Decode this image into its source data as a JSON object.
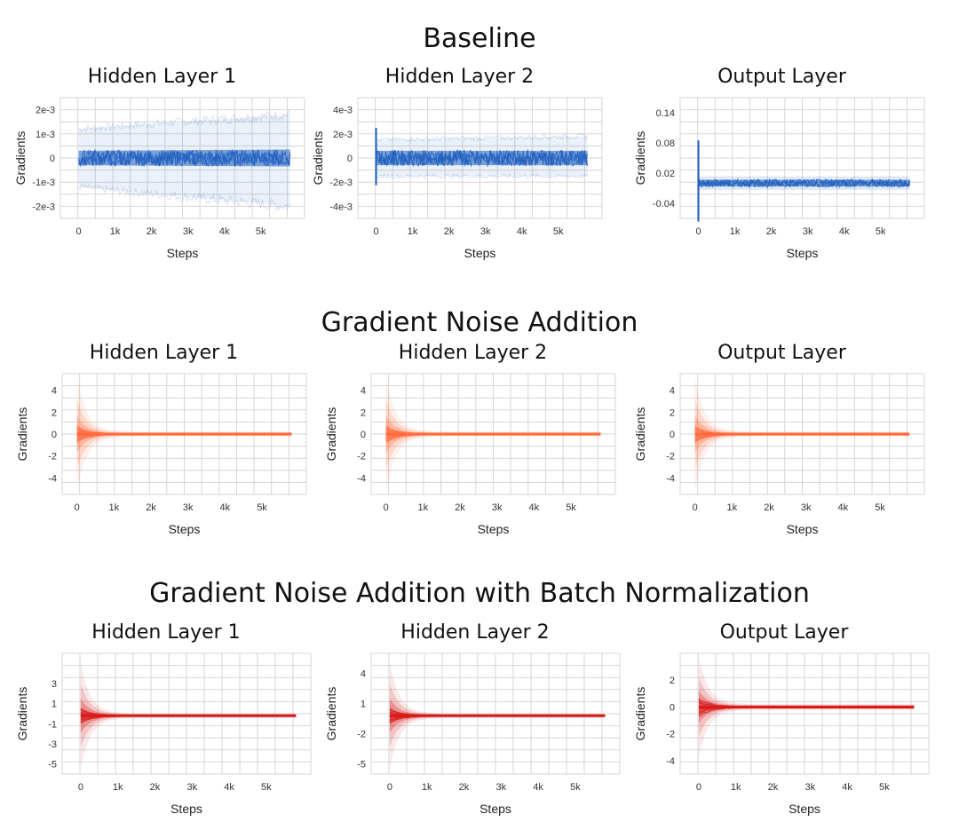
{
  "sections": [
    {
      "title": "Baseline",
      "panels": [
        {
          "title": "Hidden Layer 1",
          "chart_index": 0
        },
        {
          "title": "Hidden Layer 2",
          "chart_index": 1
        },
        {
          "title": "Output Layer",
          "chart_index": 2
        }
      ]
    },
    {
      "title": "Gradient Noise Addition",
      "panels": [
        {
          "title": "Hidden Layer 1",
          "chart_index": 3
        },
        {
          "title": "Hidden Layer 2",
          "chart_index": 4
        },
        {
          "title": "Output Layer",
          "chart_index": 5
        }
      ]
    },
    {
      "title": "Gradient Noise Addition with Batch Normalization",
      "panels": [
        {
          "title": "Hidden Layer 1",
          "chart_index": 6
        },
        {
          "title": "Hidden Layer 2",
          "chart_index": 7
        },
        {
          "title": "Output Layer",
          "chart_index": 8
        }
      ]
    }
  ],
  "colors": {
    "baseline": "#1f5fbf",
    "noise": "#ff6a3d",
    "noise_bn": "#d81a1a",
    "grid": "#d6d6d6"
  },
  "chart_data": [
    {
      "type": "area",
      "title": "Hidden Layer 1",
      "xlabel": "Steps",
      "ylabel": "Gradients",
      "x_ticks": [
        "0",
        "1k",
        "2k",
        "3k",
        "4k",
        "5k"
      ],
      "x_tick_values": [
        0,
        1000,
        2000,
        3000,
        4000,
        5000
      ],
      "y_ticks": [
        "2e-3",
        "1e-3",
        "0",
        "-1e-3",
        "-2e-3"
      ],
      "y_tick_values": [
        0.002,
        0.001,
        0,
        -0.001,
        -0.002
      ],
      "xlim": [
        -500,
        6200
      ],
      "ylim": [
        -0.0025,
        0.0025
      ],
      "series": {
        "x": [
          0,
          5800
        ],
        "outer_band": [
          -0.0012,
          0.0012,
          -0.002,
          0.0018
        ],
        "inner_band": [
          -0.0003,
          0.0003,
          -0.00035,
          0.00035
        ],
        "center": 0,
        "spike": 0
      }
    },
    {
      "type": "area",
      "title": "Hidden Layer 2",
      "xlabel": "Steps",
      "ylabel": "Gradients",
      "x_ticks": [
        "0",
        "1k",
        "2k",
        "3k",
        "4k",
        "5k"
      ],
      "x_tick_values": [
        0,
        1000,
        2000,
        3000,
        4000,
        5000
      ],
      "y_ticks": [
        "4e-3",
        "2e-3",
        "0",
        "-2e-3",
        "-4e-3"
      ],
      "y_tick_values": [
        0.004,
        0.002,
        0,
        -0.002,
        -0.004
      ],
      "xlim": [
        -500,
        6200
      ],
      "ylim": [
        -0.005,
        0.005
      ],
      "series": {
        "x": [
          0,
          5800
        ],
        "outer_band": [
          -0.0015,
          0.0015,
          -0.0015,
          0.0018
        ],
        "inner_band": [
          -0.0006,
          0.0006,
          -0.0006,
          0.0006
        ],
        "center": 0,
        "spike": 0.0025
      }
    },
    {
      "type": "area",
      "title": "Output Layer",
      "xlabel": "Steps",
      "ylabel": "Gradients",
      "x_ticks": [
        "0",
        "1k",
        "2k",
        "3k",
        "4k",
        "5k"
      ],
      "x_tick_values": [
        0,
        1000,
        2000,
        3000,
        4000,
        5000
      ],
      "y_ticks": [
        "0.14",
        "0.08",
        "0.02",
        "-0.04"
      ],
      "y_tick_values": [
        0.14,
        0.08,
        0.02,
        -0.04
      ],
      "xlim": [
        -500,
        6200
      ],
      "ylim": [
        -0.07,
        0.17
      ],
      "series": {
        "x": [
          0,
          5800
        ],
        "outer_band": [
          -0.012,
          0.012,
          -0.012,
          0.012
        ],
        "inner_band": [
          -0.007,
          0.007,
          -0.007,
          0.007
        ],
        "center": 0,
        "spike": 0.085
      }
    },
    {
      "type": "area",
      "title": "Hidden Layer 1",
      "xlabel": "Steps",
      "ylabel": "Gradients",
      "x_ticks": [
        "0",
        "1k",
        "2k",
        "3k",
        "4k",
        "5k"
      ],
      "x_tick_values": [
        0,
        1000,
        2000,
        3000,
        4000,
        5000
      ],
      "y_ticks": [
        "4",
        "2",
        "0",
        "-2",
        "-4"
      ],
      "y_tick_values": [
        4,
        2,
        0,
        -2,
        -4
      ],
      "xlim": [
        -400,
        6200
      ],
      "ylim": [
        -5.5,
        5.5
      ],
      "series": {
        "decay": true,
        "peak": 5,
        "inner_peak": 1.5,
        "center": 0
      }
    },
    {
      "type": "area",
      "title": "Hidden Layer 2",
      "xlabel": "Steps",
      "ylabel": "Gradients",
      "x_ticks": [
        "0",
        "1k",
        "2k",
        "3k",
        "4k",
        "5k"
      ],
      "x_tick_values": [
        0,
        1000,
        2000,
        3000,
        4000,
        5000
      ],
      "y_ticks": [
        "4",
        "2",
        "0",
        "-2",
        "-4"
      ],
      "y_tick_values": [
        4,
        2,
        0,
        -2,
        -4
      ],
      "xlim": [
        -400,
        6200
      ],
      "ylim": [
        -5.5,
        5.5
      ],
      "series": {
        "decay": true,
        "peak": 5,
        "inner_peak": 1.5,
        "center": 0
      }
    },
    {
      "type": "area",
      "title": "Output Layer",
      "xlabel": "Steps",
      "ylabel": "Gradients",
      "x_ticks": [
        "0",
        "1k",
        "2k",
        "3k",
        "4k",
        "5k"
      ],
      "x_tick_values": [
        0,
        1000,
        2000,
        3000,
        4000,
        5000
      ],
      "y_ticks": [
        "4",
        "2",
        "0",
        "-2",
        "-4"
      ],
      "y_tick_values": [
        4,
        2,
        0,
        -2,
        -4
      ],
      "xlim": [
        -400,
        6200
      ],
      "ylim": [
        -5.5,
        5.5
      ],
      "series": {
        "decay": true,
        "peak": 5,
        "inner_peak": 1.5,
        "center": 0
      }
    },
    {
      "type": "area",
      "title": "Hidden Layer 1",
      "xlabel": "Steps",
      "ylabel": "Gradients",
      "x_ticks": [
        "0",
        "1k",
        "2k",
        "3k",
        "4k",
        "5k"
      ],
      "x_tick_values": [
        0,
        1000,
        2000,
        3000,
        4000,
        5000
      ],
      "y_ticks": [
        "3",
        "1",
        "-1",
        "-3",
        "-5"
      ],
      "y_tick_values": [
        3,
        1,
        -1,
        -3,
        -5
      ],
      "xlim": [
        -500,
        6200
      ],
      "ylim": [
        -6,
        6
      ],
      "series": {
        "decay": true,
        "peak": 5,
        "inner_peak": 1.5,
        "center": -0.2
      }
    },
    {
      "type": "area",
      "title": "Hidden Layer 2",
      "xlabel": "Steps",
      "ylabel": "Gradients",
      "x_ticks": [
        "0",
        "1k",
        "2k",
        "3k",
        "4k",
        "5k"
      ],
      "x_tick_values": [
        0,
        1000,
        2000,
        3000,
        4000,
        5000
      ],
      "y_ticks": [
        "4",
        "1",
        "-2",
        "-5"
      ],
      "y_tick_values": [
        4,
        1,
        -2,
        -5
      ],
      "xlim": [
        -500,
        6200
      ],
      "ylim": [
        -6,
        6
      ],
      "series": {
        "decay": true,
        "peak": 5,
        "inner_peak": 1.5,
        "center": -0.2
      }
    },
    {
      "type": "area",
      "title": "Output Layer",
      "xlabel": "Steps",
      "ylabel": "Gradients",
      "x_ticks": [
        "0",
        "1k",
        "2k",
        "3k",
        "4k",
        "5k"
      ],
      "x_tick_values": [
        0,
        1000,
        2000,
        3000,
        4000,
        5000
      ],
      "y_ticks": [
        "2",
        "0",
        "-2",
        "-4"
      ],
      "y_tick_values": [
        2,
        0,
        -2,
        -4
      ],
      "xlim": [
        -500,
        6200
      ],
      "ylim": [
        -5,
        4
      ],
      "series": {
        "decay": true,
        "peak": 3.5,
        "inner_peak": 1.5,
        "center": 0
      }
    }
  ]
}
